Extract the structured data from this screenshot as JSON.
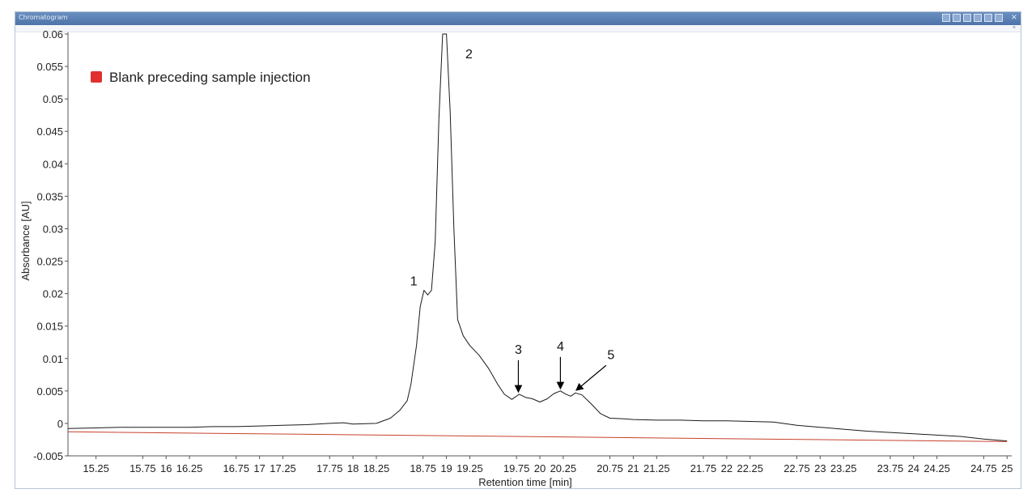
{
  "window": {
    "title": "Chromatogram",
    "tab_close": "×",
    "toolbar_icons": [
      "zoom-icon",
      "fit-icon",
      "table-icon",
      "export-icon",
      "dropdown-icon",
      "move-icon"
    ],
    "close_glyph": "×"
  },
  "chart_data": {
    "type": "line",
    "title": "",
    "xlabel": "Retention time [min]",
    "ylabel": "Absorbance [AU]",
    "xlim": [
      14.95,
      25.05
    ],
    "ylim": [
      -0.005,
      0.06
    ],
    "x_ticks": [
      15.25,
      15.75,
      16,
      16.25,
      16.75,
      17,
      17.25,
      17.75,
      18,
      18.25,
      18.75,
      19,
      19.25,
      19.75,
      20,
      20.25,
      20.75,
      21,
      21.25,
      21.75,
      22,
      22.25,
      22.75,
      23,
      23.25,
      23.75,
      24,
      24.25,
      24.75,
      25
    ],
    "x_tick_labels": [
      "15.25",
      "15.75",
      "16",
      "16.25",
      "16.75",
      "17",
      "17.25",
      "17.75",
      "18",
      "18.25",
      "18.75",
      "19",
      "19.25",
      "19.75",
      "20",
      "20.25",
      "20.75",
      "21",
      "21.25",
      "21.75",
      "22",
      "22.25",
      "22.75",
      "23",
      "23.25",
      "23.75",
      "24",
      "24.25",
      "24.75",
      "25"
    ],
    "y_ticks": [
      -0.005,
      0,
      0.005,
      0.01,
      0.015,
      0.02,
      0.025,
      0.03,
      0.035,
      0.04,
      0.045,
      0.05,
      0.055,
      0.06
    ],
    "y_tick_labels": [
      "-0.005",
      "0",
      "0.005",
      "0.01",
      "0.015",
      "0.02",
      "0.025",
      "0.03",
      "0.035",
      "0.04",
      "0.045",
      "0.05",
      "0.055",
      "0.06"
    ],
    "grid": false,
    "legend": {
      "position": "top-left",
      "entries": [
        {
          "label": "Blank preceding sample injection",
          "color": "#e03030"
        }
      ]
    },
    "series": [
      {
        "color": "#1a1a1a",
        "x": [
          14.95,
          15.25,
          15.5,
          15.75,
          16,
          16.25,
          16.5,
          16.75,
          17,
          17.25,
          17.5,
          17.75,
          17.9,
          18,
          18.25,
          18.4,
          18.5,
          18.58,
          18.62,
          18.68,
          18.72,
          18.76,
          18.8,
          18.84,
          18.88,
          18.92,
          18.96,
          19.0,
          19.04,
          19.08,
          19.12,
          19.18,
          19.25,
          19.35,
          19.45,
          19.55,
          19.62,
          19.7,
          19.78,
          19.85,
          19.92,
          20.0,
          20.08,
          20.15,
          20.22,
          20.28,
          20.33,
          20.38,
          20.45,
          20.55,
          20.65,
          20.75,
          20.9,
          21,
          21.25,
          21.5,
          21.75,
          22,
          22.25,
          22.5,
          22.75,
          23,
          23.25,
          23.5,
          23.75,
          24,
          24.25,
          24.5,
          24.75,
          25.0
        ],
        "y": [
          -0.0008,
          -0.0007,
          -0.0006,
          -0.0006,
          -0.0006,
          -0.0006,
          -0.0005,
          -0.0005,
          -0.0004,
          -0.0003,
          -0.0002,
          0.0,
          0.0001,
          -0.0001,
          0.0,
          0.0008,
          0.002,
          0.0035,
          0.006,
          0.012,
          0.018,
          0.0205,
          0.0198,
          0.0205,
          0.028,
          0.047,
          0.06,
          0.06,
          0.048,
          0.03,
          0.016,
          0.0135,
          0.012,
          0.0105,
          0.0085,
          0.006,
          0.0045,
          0.0037,
          0.0045,
          0.004,
          0.0038,
          0.0033,
          0.0038,
          0.0046,
          0.005,
          0.0045,
          0.0042,
          0.0047,
          0.0044,
          0.003,
          0.0015,
          0.0008,
          0.0007,
          0.0006,
          0.0005,
          0.0005,
          0.0004,
          0.0004,
          0.0003,
          0.0002,
          -0.0003,
          -0.0006,
          -0.0009,
          -0.0012,
          -0.0014,
          -0.0016,
          -0.0018,
          -0.002,
          -0.0024,
          -0.0027
        ]
      },
      {
        "color": "#c8402c",
        "x": [
          14.95,
          25.0
        ],
        "y": [
          -0.0013,
          -0.0028
        ]
      }
    ],
    "annotations": [
      {
        "label": "1",
        "x": 18.72,
        "y": 0.0205,
        "arrow": false
      },
      {
        "label": "2",
        "x": 19.12,
        "y": 0.0555,
        "arrow": false
      },
      {
        "label": "3",
        "x": 19.77,
        "y": 0.0045,
        "arrow": true
      },
      {
        "label": "4",
        "x": 20.22,
        "y": 0.005,
        "arrow": true
      },
      {
        "label": "5",
        "x": 20.38,
        "y": 0.0047,
        "arrow": true
      }
    ]
  }
}
